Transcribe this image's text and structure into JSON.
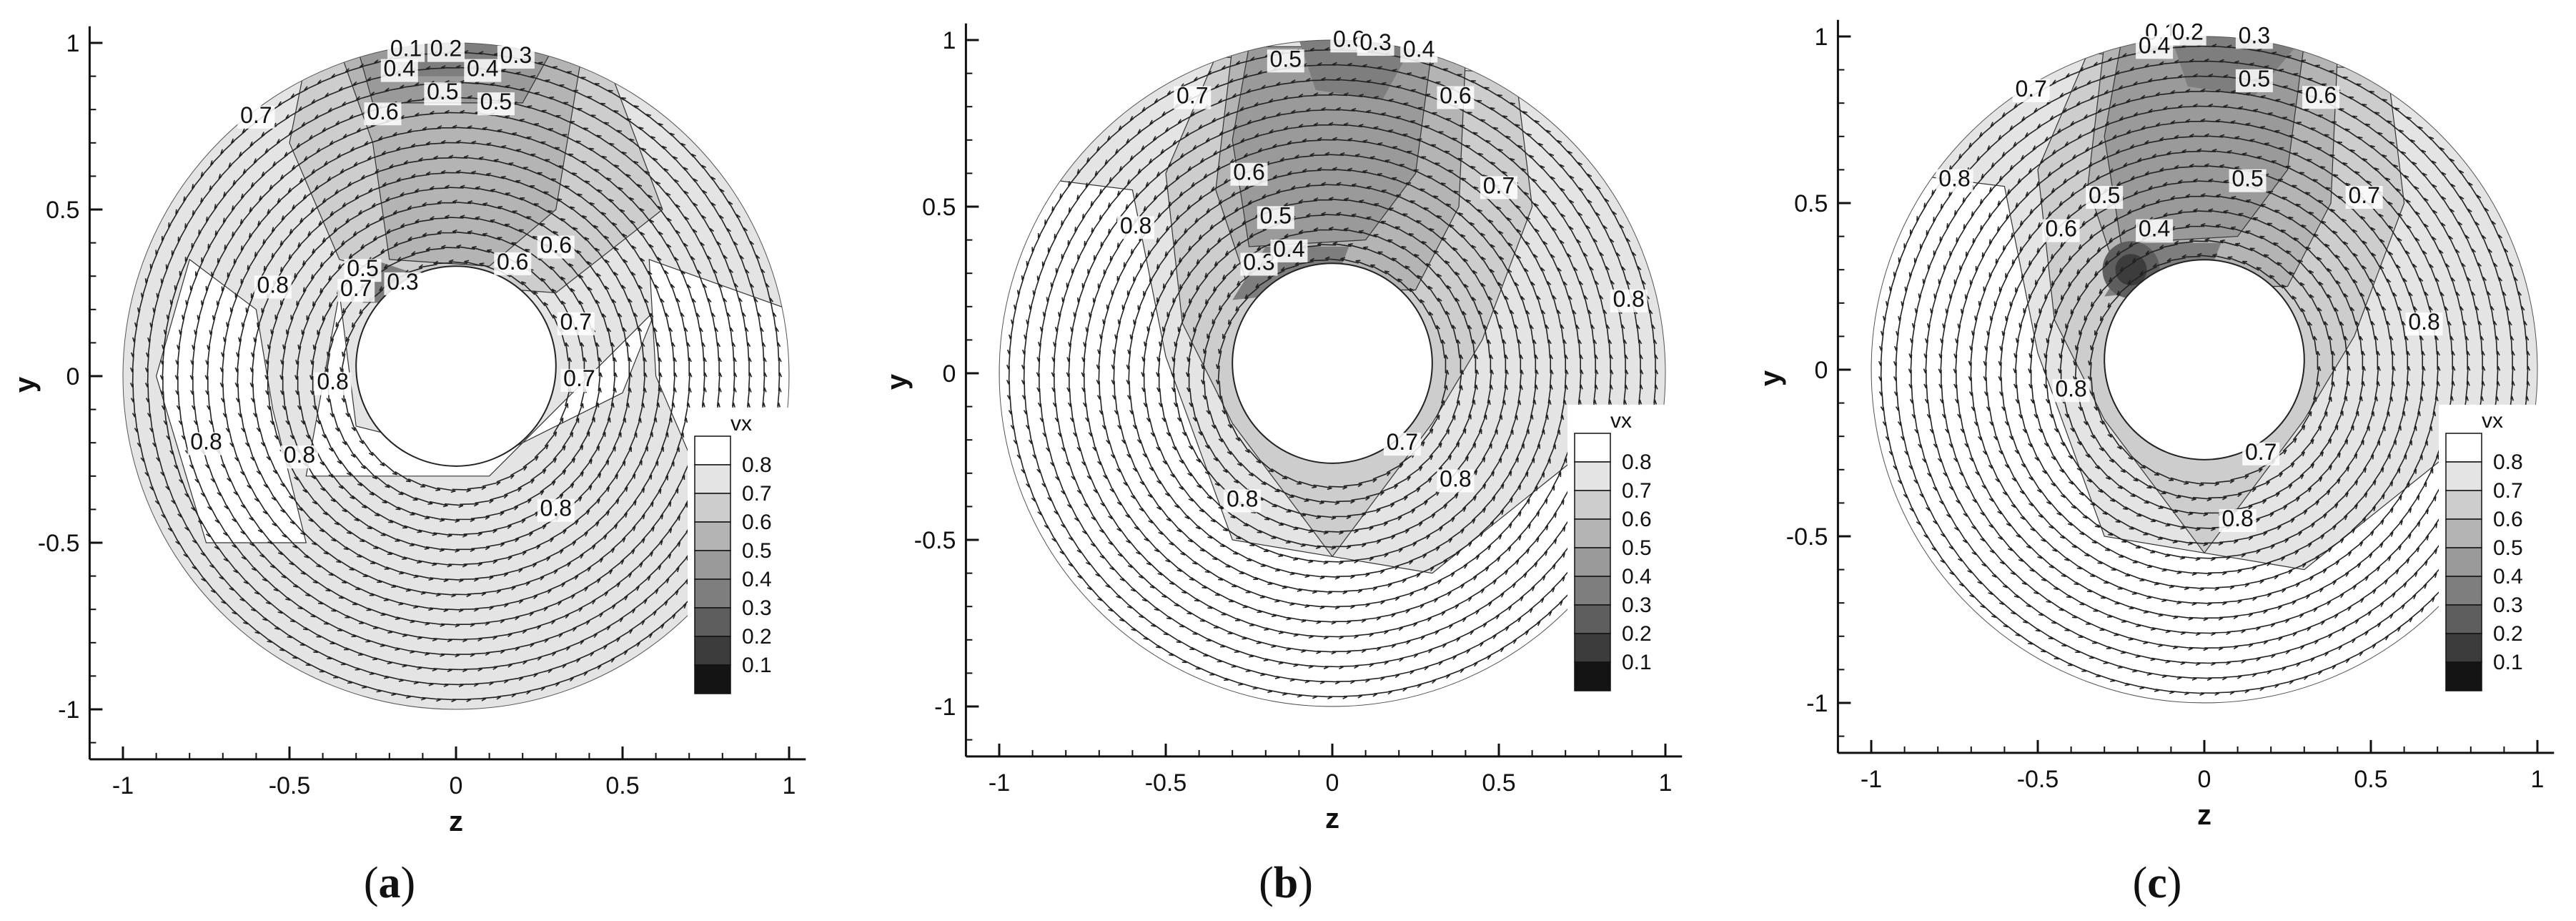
{
  "chart_data": [
    {
      "type": "contour",
      "panel": "(a)",
      "caption_label": "a",
      "xlabel": "z",
      "ylabel": "y",
      "xlim": [
        -1.1,
        1.05
      ],
      "ylim": [
        -1.15,
        1.05
      ],
      "xticks": [
        "-1",
        "-0.5",
        "0",
        "0.5",
        "1"
      ],
      "yticks": [
        "-1",
        "-0.5",
        "0",
        "0.5",
        "1"
      ],
      "legend": {
        "title": "vx",
        "levels": [
          "0.8",
          "0.7",
          "0.6",
          "0.5",
          "0.4",
          "0.3",
          "0.2",
          "0.1"
        ],
        "placement": "right"
      },
      "domain": {
        "outer_radius": 1.0,
        "hub_radius": 0.3,
        "hub_center": [
          0,
          0.03
        ]
      },
      "contour_labels": [
        {
          "text": "0.1",
          "z": -0.15,
          "y": 0.96
        },
        {
          "text": "0.2",
          "z": -0.03,
          "y": 0.96
        },
        {
          "text": "0.3",
          "z": 0.18,
          "y": 0.94
        },
        {
          "text": "0.4",
          "z": -0.17,
          "y": 0.9
        },
        {
          "text": "0.4",
          "z": 0.08,
          "y": 0.9
        },
        {
          "text": "0.5",
          "z": -0.04,
          "y": 0.83
        },
        {
          "text": "0.5",
          "z": 0.12,
          "y": 0.8
        },
        {
          "text": "0.6",
          "z": -0.22,
          "y": 0.77
        },
        {
          "text": "0.7",
          "z": -0.6,
          "y": 0.76
        },
        {
          "text": "0.5",
          "z": -0.28,
          "y": 0.3
        },
        {
          "text": "0.3",
          "z": -0.16,
          "y": 0.26
        },
        {
          "text": "0.7",
          "z": -0.3,
          "y": 0.24
        },
        {
          "text": "0.6",
          "z": 0.17,
          "y": 0.32
        },
        {
          "text": "0.6",
          "z": 0.3,
          "y": 0.37
        },
        {
          "text": "0.8",
          "z": -0.55,
          "y": 0.25
        },
        {
          "text": "0.7",
          "z": 0.36,
          "y": 0.14
        },
        {
          "text": "0.7",
          "z": 0.37,
          "y": -0.03
        },
        {
          "text": "0.8",
          "z": -0.37,
          "y": -0.04
        },
        {
          "text": "0.8",
          "z": -0.47,
          "y": -0.26
        },
        {
          "text": "0.8",
          "z": -0.75,
          "y": -0.22
        },
        {
          "text": "0.8",
          "z": 0.3,
          "y": -0.42
        }
      ]
    },
    {
      "type": "contour",
      "panel": "(b)",
      "caption_label": "b",
      "xlabel": "z",
      "ylabel": "y",
      "xlim": [
        -1.1,
        1.05
      ],
      "ylim": [
        -1.15,
        1.05
      ],
      "xticks": [
        "-1",
        "-0.5",
        "0",
        "0.5",
        "1"
      ],
      "yticks": [
        "-1",
        "-0.5",
        "0",
        "0.5",
        "1"
      ],
      "legend": {
        "title": "vx",
        "levels": [
          "0.8",
          "0.7",
          "0.6",
          "0.5",
          "0.4",
          "0.3",
          "0.2",
          "0.1"
        ],
        "placement": "right"
      },
      "domain": {
        "outer_radius": 1.0,
        "hub_radius": 0.3,
        "hub_center": [
          0,
          0.03
        ]
      },
      "contour_labels": [
        {
          "text": "0.6",
          "z": 0.05,
          "y": 0.98
        },
        {
          "text": "0.3",
          "z": 0.13,
          "y": 0.97
        },
        {
          "text": "0.4",
          "z": 0.26,
          "y": 0.95
        },
        {
          "text": "0.5",
          "z": -0.14,
          "y": 0.92
        },
        {
          "text": "0.7",
          "z": -0.42,
          "y": 0.81
        },
        {
          "text": "0.6",
          "z": 0.37,
          "y": 0.81
        },
        {
          "text": "0.8",
          "z": -0.59,
          "y": 0.42
        },
        {
          "text": "0.6",
          "z": -0.25,
          "y": 0.58
        },
        {
          "text": "0.5",
          "z": -0.17,
          "y": 0.45
        },
        {
          "text": "0.3",
          "z": -0.22,
          "y": 0.31
        },
        {
          "text": "0.4",
          "z": -0.13,
          "y": 0.35
        },
        {
          "text": "0.7",
          "z": 0.5,
          "y": 0.54
        },
        {
          "text": "0.8",
          "z": 0.89,
          "y": 0.2
        },
        {
          "text": "0.7",
          "z": 0.21,
          "y": -0.23
        },
        {
          "text": "0.8",
          "z": 0.37,
          "y": -0.34
        },
        {
          "text": "0.8",
          "z": -0.27,
          "y": -0.4
        }
      ]
    },
    {
      "type": "contour",
      "panel": "(c)",
      "caption_label": "c",
      "xlabel": "z",
      "ylabel": "y",
      "xlim": [
        -1.1,
        1.05
      ],
      "ylim": [
        -1.15,
        1.05
      ],
      "xticks": [
        "-1",
        "-0.5",
        "0",
        "0.5",
        "1"
      ],
      "yticks": [
        "-1",
        "-0.5",
        "0",
        "0.5",
        "1"
      ],
      "legend": {
        "title": "vx",
        "levels": [
          "0.8",
          "0.7",
          "0.6",
          "0.5",
          "0.4",
          "0.3",
          "0.2",
          "0.1"
        ],
        "placement": "right"
      },
      "domain": {
        "outer_radius": 1.0,
        "hub_radius": 0.3,
        "hub_center": [
          0,
          0.03
        ]
      },
      "contour_labels": [
        {
          "text": "0.1",
          "z": -0.13,
          "y": 0.99
        },
        {
          "text": "0.2",
          "z": -0.05,
          "y": 0.99
        },
        {
          "text": "0.3",
          "z": 0.15,
          "y": 0.98
        },
        {
          "text": "0.4",
          "z": -0.15,
          "y": 0.95
        },
        {
          "text": "0.7",
          "z": -0.52,
          "y": 0.82
        },
        {
          "text": "0.5",
          "z": 0.15,
          "y": 0.85
        },
        {
          "text": "0.6",
          "z": 0.35,
          "y": 0.8
        },
        {
          "text": "0.8",
          "z": -0.75,
          "y": 0.55
        },
        {
          "text": "0.5",
          "z": -0.3,
          "y": 0.5
        },
        {
          "text": "0.4",
          "z": -0.15,
          "y": 0.4
        },
        {
          "text": "0.6",
          "z": -0.43,
          "y": 0.4
        },
        {
          "text": "0.5",
          "z": 0.13,
          "y": 0.55
        },
        {
          "text": "0.7",
          "z": 0.48,
          "y": 0.5
        },
        {
          "text": "0.8",
          "z": 0.66,
          "y": 0.12
        },
        {
          "text": "0.8",
          "z": -0.4,
          "y": -0.08
        },
        {
          "text": "0.7",
          "z": 0.17,
          "y": -0.27
        },
        {
          "text": "0.8",
          "z": 0.1,
          "y": -0.47
        }
      ]
    }
  ],
  "colors": {
    "v08": "#e4e4e4",
    "v07": "#cdcdcd",
    "v06": "#b4b4b4",
    "v05": "#9a9a9a",
    "v04": "#7e7e7e",
    "v03": "#5e5e5e",
    "v02": "#3c3c3c",
    "v01": "#141414",
    "above": "#ffffff",
    "line": "#333333",
    "arrow": "#222222"
  }
}
